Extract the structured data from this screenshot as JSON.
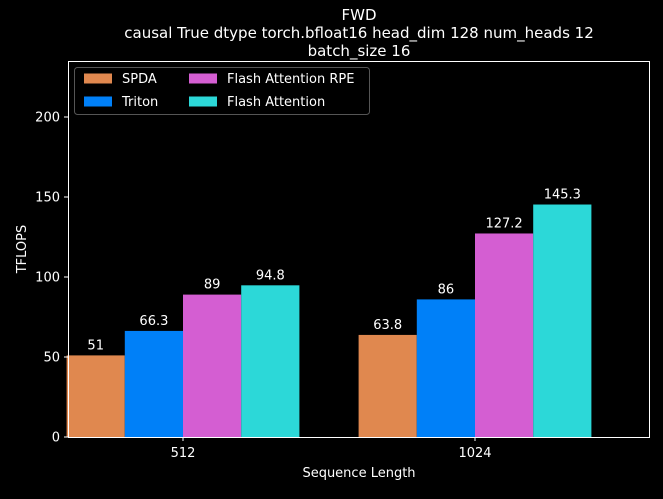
{
  "chart_data": {
    "type": "bar",
    "title_lines": [
      "FWD",
      "causal True dtype torch.bfloat16 head_dim 128 num_heads 12",
      "batch_size 16"
    ],
    "xlabel": "Sequence Length",
    "ylabel": "TFLOPS",
    "categories": [
      "512",
      "1024"
    ],
    "ylim": [
      0,
      235
    ],
    "yticks": [
      0,
      50,
      100,
      150,
      200
    ],
    "grid": false,
    "legend_position": "top-left",
    "series": [
      {
        "name": "SPDA",
        "color": "#e0884f",
        "values": [
          51,
          63.8
        ],
        "labels": [
          "51",
          "63.8"
        ]
      },
      {
        "name": "Triton",
        "color": "#0080f8",
        "values": [
          66.3,
          86
        ],
        "labels": [
          "66.3",
          "86"
        ]
      },
      {
        "name": "Flash Attention RPE",
        "color": "#d45ed2",
        "values": [
          89,
          127.2
        ],
        "labels": [
          "89",
          "127.2"
        ]
      },
      {
        "name": "Flash Attention",
        "color": "#2cd8d8",
        "values": [
          94.8,
          145.3
        ],
        "labels": [
          "94.8",
          "145.3"
        ]
      }
    ]
  }
}
